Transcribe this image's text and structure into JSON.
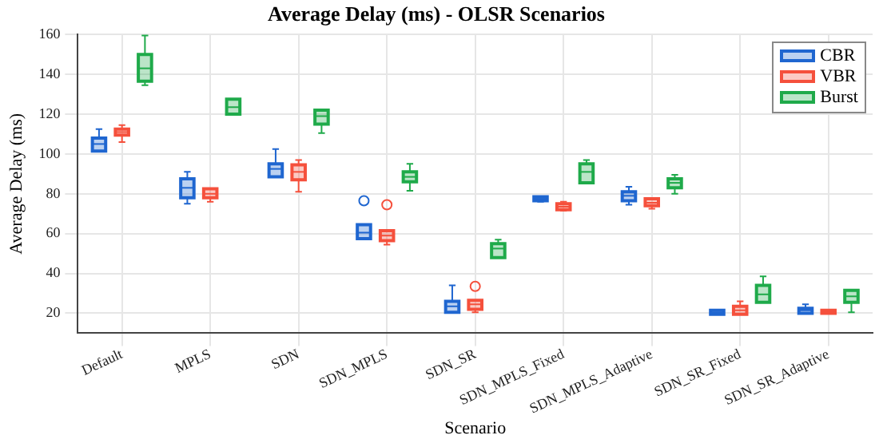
{
  "chart_data": {
    "type": "box",
    "title": "Average Delay (ms) - OLSR Scenarios",
    "xlabel": "Scenario",
    "ylabel": "Average Delay (ms)",
    "categories": [
      "Default",
      "MPLS",
      "SDN",
      "SDN_MPLS",
      "SDN_SR",
      "SDN_MPLS_Fixed",
      "SDN_MPLS_Adaptive",
      "SDN_SR_Fixed",
      "SDN_SR_Adaptive"
    ],
    "ylim": [
      10,
      160
    ],
    "yticks": [
      20,
      40,
      60,
      80,
      100,
      120,
      140,
      160
    ],
    "grid": true,
    "legend": "top right",
    "series": [
      {
        "name": "CBR",
        "color": "#1f66d0",
        "boxes": [
          {
            "low": 101.5,
            "q1": 101.5,
            "median": 105,
            "q3": 108,
            "high": 112.5
          },
          {
            "low": 75,
            "q1": 78,
            "median": 83,
            "q3": 87.5,
            "high": 91
          },
          {
            "low": 88.5,
            "q1": 88.5,
            "median": 92.5,
            "q3": 95,
            "high": 102.5
          },
          {
            "low": 57.5,
            "q1": 57.5,
            "median": 60.5,
            "q3": 64.5,
            "high": 64.5,
            "outliers": [
              76.5
            ]
          },
          {
            "low": 20.5,
            "q1": 20.5,
            "median": 23.5,
            "q3": 26,
            "high": 34
          },
          {
            "low": 76,
            "q1": 76.5,
            "median": 77.5,
            "q3": 78.5,
            "high": 78.5
          },
          {
            "low": 74.5,
            "q1": 76.5,
            "median": 79,
            "q3": 81,
            "high": 83.5
          },
          {
            "low": 19.5,
            "q1": 19.5,
            "median": 20.5,
            "q3": 21.5,
            "high": 21.5
          },
          {
            "low": 20,
            "q1": 20,
            "median": 21.5,
            "q3": 22.5,
            "high": 24.5
          }
        ]
      },
      {
        "name": "VBR",
        "color": "#f5503c",
        "boxes": [
          {
            "low": 106,
            "q1": 109.5,
            "median": 111,
            "q3": 112.5,
            "high": 114.5
          },
          {
            "low": 76,
            "q1": 78,
            "median": 80,
            "q3": 82.5,
            "high": 82.5
          },
          {
            "low": 81,
            "q1": 87,
            "median": 91,
            "q3": 94.5,
            "high": 97
          },
          {
            "low": 54.5,
            "q1": 56.5,
            "median": 59,
            "q3": 61.5,
            "high": 61.5,
            "outliers": [
              74.5
            ]
          },
          {
            "low": 20.5,
            "q1": 22,
            "median": 24.5,
            "q3": 26.5,
            "high": 26.5,
            "outliers": [
              33.5
            ]
          },
          {
            "low": 71.5,
            "q1": 72,
            "median": 73.5,
            "q3": 75,
            "high": 76
          },
          {
            "low": 72.5,
            "q1": 74,
            "median": 75.5,
            "q3": 77.5,
            "high": 77.5
          },
          {
            "low": 19.5,
            "q1": 19.5,
            "median": 21.5,
            "q3": 23.5,
            "high": 26
          },
          {
            "low": 20,
            "q1": 20,
            "median": 21,
            "q3": 21.5,
            "high": 21.5
          }
        ]
      },
      {
        "name": "Burst",
        "color": "#1faa4a",
        "boxes": [
          {
            "low": 134.5,
            "q1": 136.5,
            "median": 143,
            "q3": 150,
            "high": 159.5
          },
          {
            "low": 120,
            "q1": 120,
            "median": 123.5,
            "q3": 127.5,
            "high": 127.5
          },
          {
            "low": 110.5,
            "q1": 115,
            "median": 119,
            "q3": 122,
            "high": 122
          },
          {
            "low": 81.5,
            "q1": 86,
            "median": 88.5,
            "q3": 91,
            "high": 95
          },
          {
            "low": 48,
            "q1": 48,
            "median": 52.5,
            "q3": 55,
            "high": 57
          },
          {
            "low": 85.5,
            "q1": 85.5,
            "median": 91,
            "q3": 95,
            "high": 97
          },
          {
            "low": 80,
            "q1": 83,
            "median": 85.5,
            "q3": 87.5,
            "high": 89.5
          },
          {
            "low": 25.5,
            "q1": 25.5,
            "median": 29.5,
            "q3": 34,
            "high": 38.5
          },
          {
            "low": 20.5,
            "q1": 25.5,
            "median": 28.5,
            "q3": 31.5,
            "high": 31.5
          }
        ]
      }
    ]
  }
}
